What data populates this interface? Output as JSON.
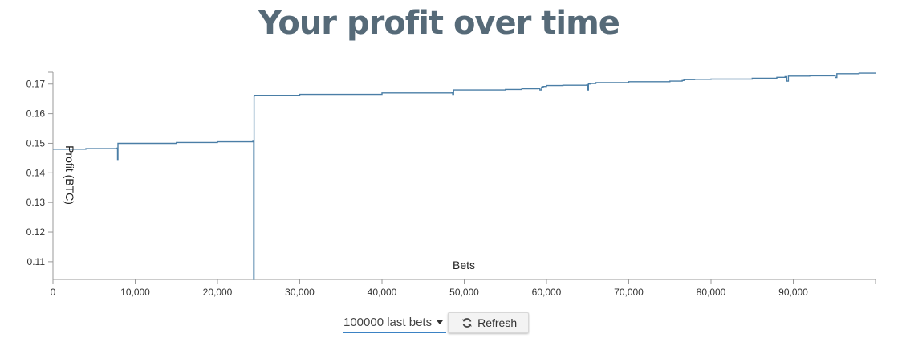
{
  "page": {
    "title": "Your profit over time"
  },
  "controls": {
    "range_select": "100000 last bets",
    "refresh_label": "Refresh",
    "refresh_icon": "refresh-icon",
    "caret_icon": "caret-down-icon"
  },
  "chart_data": {
    "type": "line",
    "title": "Your profit over time",
    "xlabel": "Bets",
    "ylabel": "Profit (BTC)",
    "xlim": [
      0,
      100000
    ],
    "ylim": [
      0.104,
      0.174
    ],
    "x_ticks": [
      0,
      10000,
      20000,
      30000,
      40000,
      50000,
      60000,
      70000,
      80000,
      90000
    ],
    "x_tick_labels": [
      "0",
      "10,000",
      "20,000",
      "30,000",
      "40,000",
      "50,000",
      "60,000",
      "70,000",
      "80,000",
      "90,000"
    ],
    "y_ticks": [
      0.11,
      0.12,
      0.13,
      0.14,
      0.15,
      0.16,
      0.17
    ],
    "y_tick_labels": [
      "0.11",
      "0.12",
      "0.13",
      "0.14",
      "0.15",
      "0.16",
      "0.17"
    ],
    "grid": false,
    "line_color": "#4a7ea6",
    "series": [
      {
        "x": [
          0,
          4000,
          7800,
          7850,
          7900,
          7950,
          15000,
          20000,
          24300,
          24400,
          24450,
          24500,
          30000,
          40000,
          48500,
          48600,
          48700,
          55000,
          57000,
          59000,
          59200,
          59400,
          59600,
          60000,
          62000,
          64900,
          65000,
          65100,
          65300,
          66000,
          70000,
          75000,
          76500,
          76700,
          78000,
          80000,
          85000,
          88000,
          89000,
          89200,
          89400,
          92000,
          95000,
          95100,
          95300,
          98000,
          100000
        ],
        "y": [
          0.148,
          0.1482,
          0.1484,
          0.1445,
          0.15,
          0.15,
          0.1503,
          0.1505,
          0.1507,
          0.104,
          0.166,
          0.1662,
          0.1665,
          0.167,
          0.1673,
          0.1665,
          0.168,
          0.1682,
          0.1684,
          0.1685,
          0.168,
          0.169,
          0.1692,
          0.1695,
          0.1696,
          0.1697,
          0.168,
          0.17,
          0.1702,
          0.1705,
          0.1708,
          0.171,
          0.1712,
          0.1715,
          0.1716,
          0.1717,
          0.172,
          0.1723,
          0.1725,
          0.171,
          0.1727,
          0.1728,
          0.173,
          0.1722,
          0.1735,
          0.1737,
          0.1736
        ]
      }
    ]
  }
}
